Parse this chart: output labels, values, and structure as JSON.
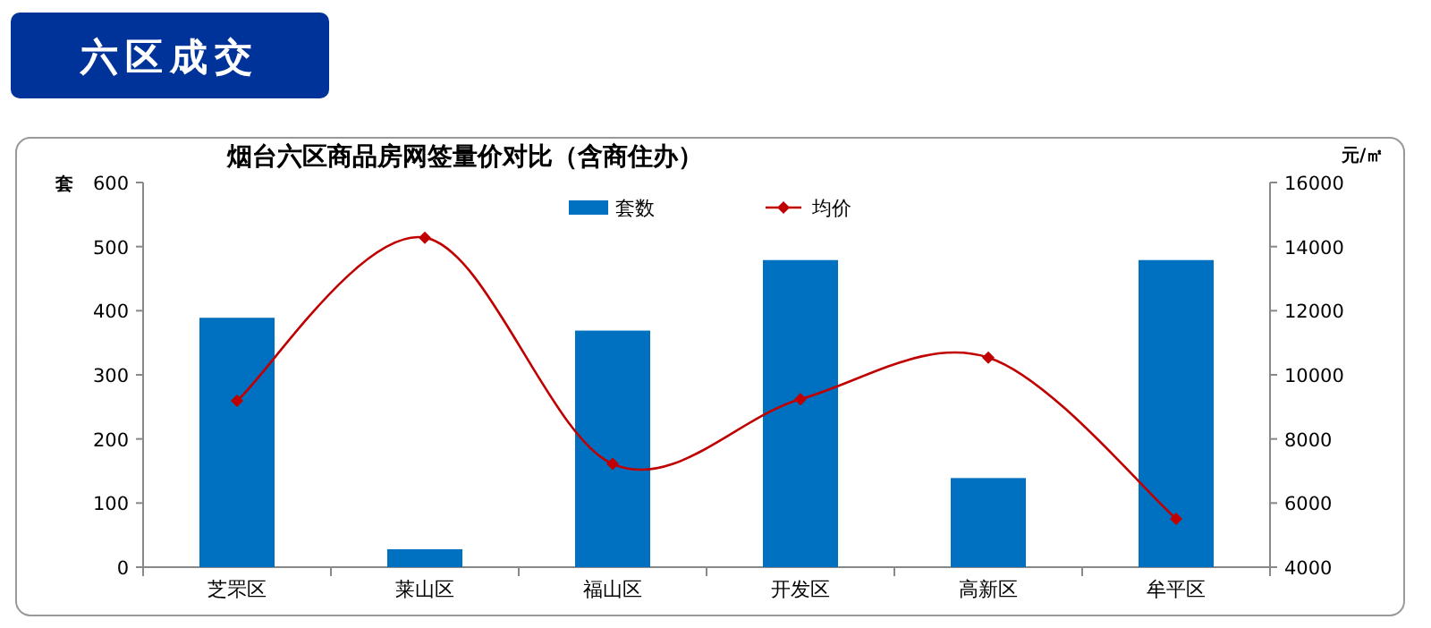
{
  "chart_data": {
    "type": "bar",
    "title": "六区成交",
    "subtitle": "烟台六区商品房网签量价对比（含商住办）",
    "ylabel": "套",
    "y2label": "元/㎡",
    "categories": [
      "芝罘区",
      "莱山区",
      "福山区",
      "开发区",
      "高新区",
      "牟平区"
    ],
    "series": [
      {
        "name": "套数",
        "color": "#0070c0",
        "values": [
          389,
          28,
          369,
          479,
          139,
          479
        ]
      },
      {
        "name": "均价",
        "type": "line",
        "axis": "y2",
        "color": "#c00000",
        "marker": "diamond",
        "values": [
          9190,
          14280,
          7220,
          9240,
          10540,
          5510
        ]
      }
    ],
    "ylim": [
      0,
      600
    ],
    "yticks": [
      0,
      100,
      200,
      300,
      400,
      500,
      600
    ],
    "y2lim": [
      4000,
      16000
    ],
    "y2ticks": [
      4000,
      6000,
      8000,
      10000,
      12000,
      14000,
      16000
    ],
    "legend": "top",
    "grid": false
  }
}
